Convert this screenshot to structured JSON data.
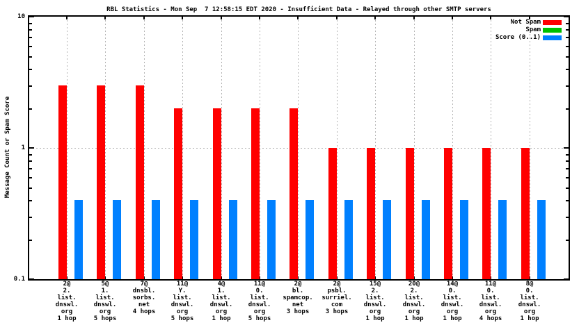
{
  "title": "RBL Statistics - Mon Sep  7 12:58:15 EDT 2020 - Insufficient Data - Relayed through other SMTP servers",
  "chart_data": {
    "type": "bar",
    "title": "RBL Statistics - Mon Sep  7 12:58:15 EDT 2020 - Insufficient Data - Relayed through other SMTP servers",
    "xlabel": "",
    "ylabel": "Message Count or Spam Score",
    "yscale": "log",
    "ylim": [
      0.1,
      10
    ],
    "grid": "xtics and ytic at 1, dashed gray",
    "legend_position": "top-right-inside",
    "ytick_labels": [
      {
        "text": "10",
        "value": 10
      },
      {
        "text": "1",
        "value": 1
      },
      {
        "text": "0.1",
        "value": 0.1
      }
    ],
    "legend": [
      {
        "label": "Not Spam",
        "color": "#ff0000"
      },
      {
        "label": "Spam",
        "color": "#00c000"
      },
      {
        "label": "Score (0..1)",
        "color": "#0080ff"
      }
    ],
    "categories": [
      {
        "lines": [
          "2@",
          "2.",
          "list.",
          "dnswl.",
          "org",
          "1 hop"
        ]
      },
      {
        "lines": [
          "5@",
          "1.",
          "list.",
          "dnswl.",
          "org",
          "5 hops"
        ]
      },
      {
        "lines": [
          "7@",
          "dnsbl.",
          "sorbs.",
          "net",
          "4 hops"
        ]
      },
      {
        "lines": [
          "11@",
          "Y.",
          "list.",
          "dnswl.",
          "org",
          "5 hops"
        ]
      },
      {
        "lines": [
          "4@",
          "1.",
          "list.",
          "dnswl.",
          "org",
          "1 hop"
        ]
      },
      {
        "lines": [
          "11@",
          "0.",
          "list.",
          "dnswl.",
          "org",
          "5 hops"
        ]
      },
      {
        "lines": [
          "2@",
          "bl.",
          "spamcop.",
          "net",
          "3 hops"
        ]
      },
      {
        "lines": [
          "2@",
          "psbl.",
          "surriel.",
          "com",
          "3 hops"
        ]
      },
      {
        "lines": [
          "15@",
          "2.",
          "list.",
          "dnswl.",
          "org",
          "1 hop"
        ]
      },
      {
        "lines": [
          "20@",
          "2.",
          "list.",
          "dnswl.",
          "org",
          "1 hop"
        ]
      },
      {
        "lines": [
          "14@",
          "0.",
          "list.",
          "dnswl.",
          "org",
          "1 hop"
        ]
      },
      {
        "lines": [
          "11@",
          "0.",
          "list.",
          "dnswl.",
          "org",
          "4 hops"
        ]
      },
      {
        "lines": [
          "8@",
          "0.",
          "list.",
          "dnswl.",
          "org",
          "1 hop"
        ]
      }
    ],
    "series": [
      {
        "name": "Not Spam",
        "color": "#ff0000",
        "values": [
          3,
          3,
          3,
          2,
          2,
          2,
          2,
          1,
          1,
          1,
          1,
          1,
          1
        ]
      },
      {
        "name": "Spam",
        "color": "#00c000",
        "values": [
          0,
          0,
          0,
          0,
          0,
          0,
          0,
          0,
          0,
          0,
          0,
          0,
          0
        ]
      },
      {
        "name": "Score (0..1)",
        "color": "#0080ff",
        "values": [
          0.4,
          0.4,
          0.4,
          0.4,
          0.4,
          0.4,
          0.4,
          0.4,
          0.4,
          0.4,
          0.4,
          0.4,
          0.4
        ]
      }
    ]
  }
}
